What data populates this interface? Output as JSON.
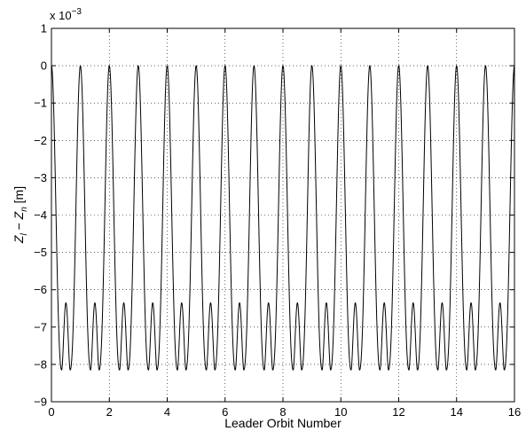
{
  "chart_data": {
    "type": "line",
    "xlabel": "Leader Orbit Number",
    "ylabel_parts": {
      "z1": "Z",
      "sub1": "l",
      "minus": " − ",
      "z2": "Z",
      "sub2": "n",
      "unit": " [m]"
    },
    "y_scale_note": {
      "base": "x 10",
      "exponent": "−3"
    },
    "xlim": [
      0,
      16
    ],
    "ylim": [
      -9,
      1
    ],
    "xticks": [
      0,
      2,
      4,
      6,
      8,
      10,
      12,
      14,
      16
    ],
    "yticks": [
      1,
      0,
      -1,
      -2,
      -3,
      -4,
      -5,
      -6,
      -7,
      -8,
      -9
    ],
    "ytick_labels": [
      "1",
      "0",
      "−1",
      "−2",
      "−3",
      "−4",
      "−5",
      "−6",
      "−7",
      "−8",
      "−9"
    ],
    "grid": true,
    "grid_style": "dotted",
    "series": [
      {
        "color": "#000000",
        "description": "periodic oscillation, one cycle per orbit: peaks at 0 at integer orbit numbers, double minimum near -8.15 with a local max of about -7.25 at each half orbit, ending near -1.45 at orbit 16",
        "period": 1,
        "peak_value": 0,
        "trough_value": -8.15,
        "mid_cycle_local_max": -7.25,
        "end_value": -1.45,
        "x_start": 0,
        "x_end": 16
      }
    ]
  }
}
